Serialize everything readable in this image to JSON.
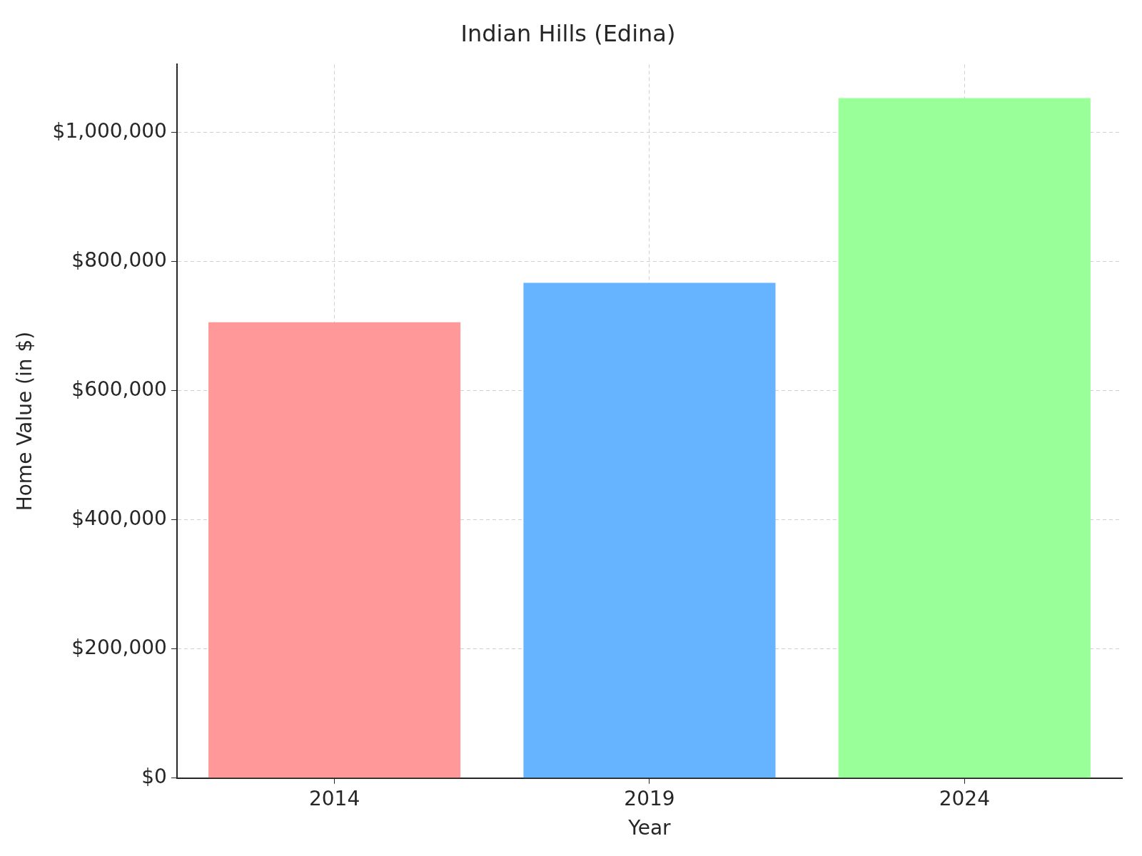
{
  "chart_data": {
    "type": "bar",
    "title": "Indian Hills (Edina)",
    "x_label": "Year",
    "y_label": "Home Value (in $)",
    "categories": [
      "2014",
      "2019",
      "2024"
    ],
    "values": [
      706000,
      767000,
      1053000
    ],
    "colors": [
      "#ff9999",
      "#66b3ff",
      "#99ff99"
    ],
    "ylim": [
      0,
      1105000
    ],
    "yticks": [
      {
        "value": 0,
        "label": "$0"
      },
      {
        "value": 200000,
        "label": "$200,000"
      },
      {
        "value": 400000,
        "label": "$400,000"
      },
      {
        "value": 600000,
        "label": "$600,000"
      },
      {
        "value": 800000,
        "label": "$800,000"
      },
      {
        "value": 1000000,
        "label": "$1,000,000"
      }
    ],
    "grid": true
  }
}
